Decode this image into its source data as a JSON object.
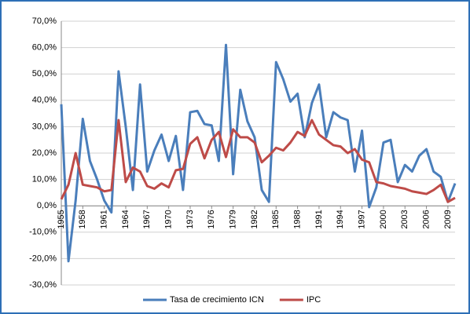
{
  "chart_data": {
    "type": "line",
    "x": [
      1955,
      1956,
      1957,
      1958,
      1959,
      1960,
      1961,
      1962,
      1963,
      1964,
      1965,
      1966,
      1967,
      1968,
      1969,
      1970,
      1971,
      1972,
      1973,
      1974,
      1975,
      1976,
      1977,
      1978,
      1979,
      1980,
      1981,
      1982,
      1983,
      1984,
      1985,
      1986,
      1987,
      1988,
      1989,
      1990,
      1991,
      1992,
      1993,
      1994,
      1995,
      1996,
      1997,
      1998,
      1999,
      2000,
      2001,
      2002,
      2003,
      2004,
      2005,
      2006,
      2007,
      2008,
      2009,
      2010
    ],
    "xlim": [
      1955,
      2010
    ],
    "xticks": [
      1955,
      1958,
      1961,
      1964,
      1967,
      1970,
      1973,
      1976,
      1979,
      1982,
      1985,
      1988,
      1991,
      1994,
      1997,
      2000,
      2003,
      2006,
      2009
    ],
    "ylim": [
      -30,
      70
    ],
    "yticks": [
      {
        "value": -30,
        "label": "-30,0%"
      },
      {
        "value": -20,
        "label": "-20,0%"
      },
      {
        "value": -10,
        "label": "-10,0%"
      },
      {
        "value": 0,
        "label": "0,0%"
      },
      {
        "value": 10,
        "label": "10,0%"
      },
      {
        "value": 20,
        "label": "20,0%"
      },
      {
        "value": 30,
        "label": "30,0%"
      },
      {
        "value": 40,
        "label": "40,0%"
      },
      {
        "value": 50,
        "label": "50,0%"
      },
      {
        "value": 60,
        "label": "60,0%"
      },
      {
        "value": 70,
        "label": "70,0%"
      }
    ],
    "grid": true,
    "legend": "bottom",
    "series": [
      {
        "name": "Tasa de crecimiento ICN",
        "color": "#4a7ebb",
        "values": [
          38.5,
          -21,
          2,
          33,
          17,
          10,
          2,
          -2.5,
          51,
          30,
          6,
          46,
          13,
          21,
          27,
          17,
          26.5,
          6,
          35.5,
          36,
          31,
          30.5,
          17,
          61,
          12,
          44,
          32,
          26,
          6,
          1.5,
          54.5,
          48,
          39.5,
          42.5,
          26,
          39,
          46,
          26,
          35.5,
          33.5,
          32.5,
          13,
          28.5,
          -0.5,
          7,
          24,
          25,
          9,
          15.5,
          13,
          19,
          21.5,
          13,
          11,
          1.5,
          8.5
        ]
      },
      {
        "name": "IPC",
        "color": "#be4b48",
        "values": [
          2.5,
          8,
          20,
          8,
          7.5,
          7,
          5.5,
          6,
          32.5,
          9,
          14.5,
          13,
          7.5,
          6.5,
          8.5,
          7,
          13.5,
          14,
          23.5,
          26,
          18,
          25,
          28,
          18.5,
          29,
          26,
          26,
          24,
          16.5,
          19,
          22,
          21,
          24,
          28,
          26.5,
          32.5,
          27,
          25,
          23,
          22.5,
          20,
          21.5,
          17.5,
          16.5,
          9,
          8.5,
          7.5,
          7,
          6.5,
          5.5,
          5,
          4.5,
          6,
          8,
          1.5,
          3
        ]
      }
    ]
  }
}
